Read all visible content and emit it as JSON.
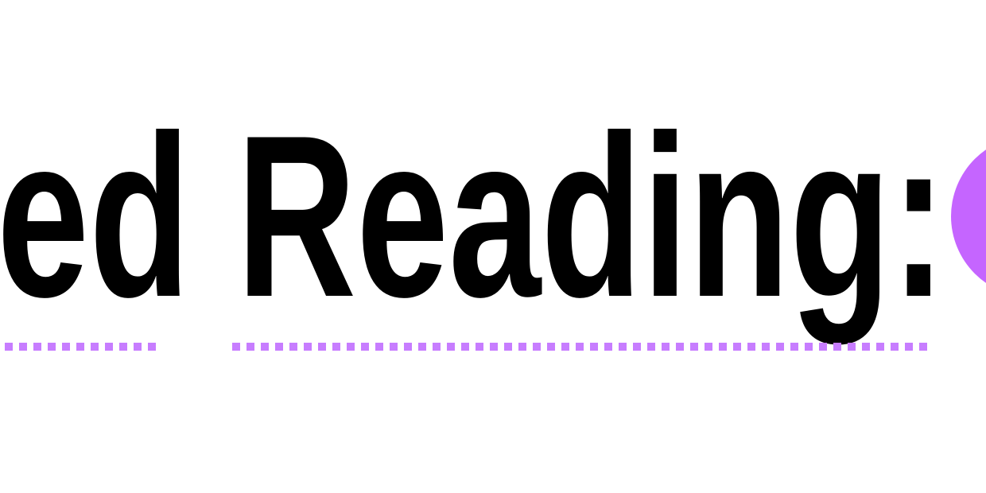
{
  "heading": {
    "text": "ed Reading:"
  }
}
